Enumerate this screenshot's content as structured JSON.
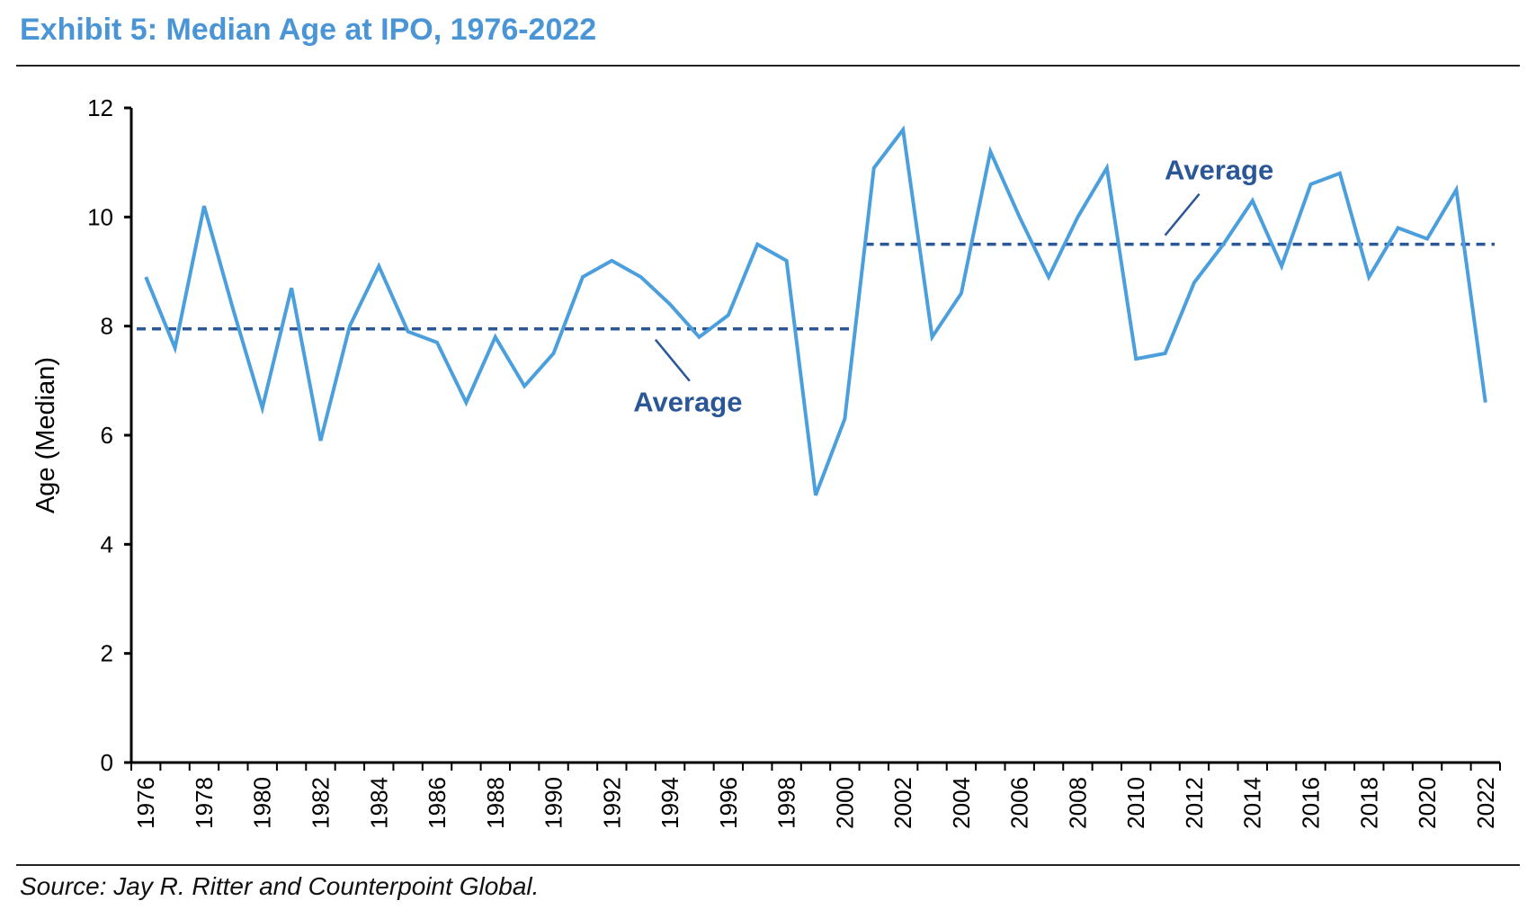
{
  "title": "Exhibit 5: Median Age at IPO, 1976-2022",
  "source": "Source: Jay R. Ritter and Counterpoint Global.",
  "chart_data": {
    "type": "line",
    "title": "Exhibit 5: Median Age at IPO, 1976-2022",
    "xlabel": "",
    "ylabel": "Age (Median)",
    "ylim": [
      0,
      12
    ],
    "yticks": [
      0,
      2,
      4,
      6,
      8,
      10,
      12
    ],
    "grid": false,
    "x": [
      1976,
      1977,
      1978,
      1979,
      1980,
      1981,
      1982,
      1983,
      1984,
      1985,
      1986,
      1987,
      1988,
      1989,
      1990,
      1991,
      1992,
      1993,
      1994,
      1995,
      1996,
      1997,
      1998,
      1999,
      2000,
      2001,
      2002,
      2003,
      2004,
      2005,
      2006,
      2007,
      2008,
      2009,
      2010,
      2011,
      2012,
      2013,
      2014,
      2015,
      2016,
      2017,
      2018,
      2019,
      2020,
      2021,
      2022
    ],
    "xtick_labels": [
      "1976",
      "1978",
      "1980",
      "1982",
      "1984",
      "1986",
      "1988",
      "1990",
      "1992",
      "1994",
      "1996",
      "1998",
      "2000",
      "2002",
      "2004",
      "2006",
      "2008",
      "2010",
      "2012",
      "2014",
      "2016",
      "2018",
      "2020",
      "2022"
    ],
    "series": [
      {
        "name": "Median Age at IPO",
        "color": "#4a9fdc",
        "values": [
          8.9,
          7.6,
          10.2,
          8.3,
          6.5,
          8.7,
          5.9,
          8.0,
          9.1,
          7.9,
          7.7,
          6.6,
          7.8,
          6.9,
          7.5,
          8.9,
          9.2,
          8.9,
          8.4,
          7.8,
          8.2,
          9.5,
          9.2,
          4.9,
          6.3,
          10.9,
          11.6,
          7.8,
          8.6,
          11.2,
          10.0,
          8.9,
          10.0,
          10.9,
          7.4,
          7.5,
          8.8,
          9.5,
          10.3,
          9.1,
          10.6,
          10.8,
          8.9,
          9.8,
          9.6,
          10.5,
          6.6
        ]
      }
    ],
    "averages": [
      {
        "label": "Average",
        "value": 7.95,
        "x_start": 1976,
        "x_end": 2000,
        "color": "#2b5797"
      },
      {
        "label": "Average",
        "value": 9.5,
        "x_start": 2001,
        "x_end": 2022,
        "color": "#2b5797"
      }
    ],
    "annotations": [
      {
        "text": "Average",
        "attached_to": "average-1976-2000"
      },
      {
        "text": "Average",
        "attached_to": "average-2001-2022"
      }
    ]
  }
}
